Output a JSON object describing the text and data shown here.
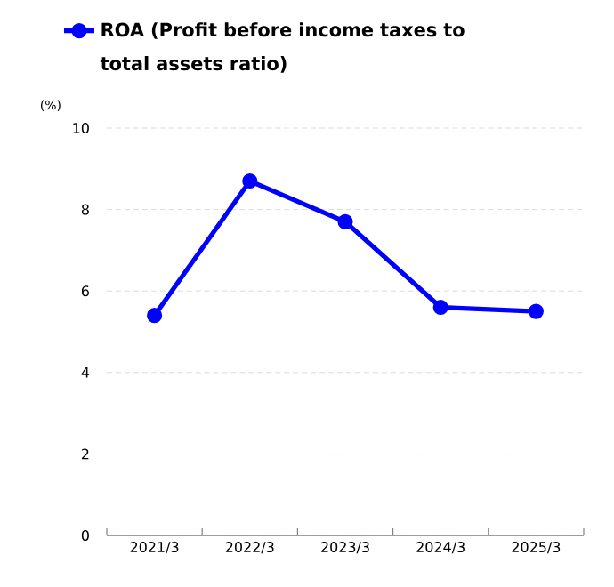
{
  "chart_data": {
    "type": "line",
    "ylabel": "(%)",
    "categories": [
      "2021/3",
      "2022/3",
      "2023/3",
      "2024/3",
      "2025/3"
    ],
    "series": [
      {
        "name": "ROA (Profit before income taxes to total assets ratio)",
        "color": "#0000ff",
        "values": [
          5.4,
          8.7,
          7.7,
          5.6,
          5.5
        ]
      }
    ],
    "ylim": [
      0,
      10
    ],
    "yticks": [
      0,
      2,
      4,
      6,
      8,
      10
    ],
    "grid": "y",
    "legend": "top",
    "marker": "circle",
    "line_style": "solid"
  }
}
